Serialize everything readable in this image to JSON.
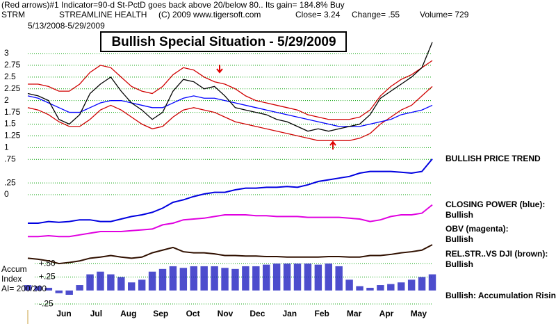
{
  "chart_data": {
    "type": "line",
    "subtitle": "(Red arrows)#1 Indicator=90-d St-PctD goes back above 20/below 80.. Its gain= 184.8% Buy",
    "symbol": "STRM",
    "company": "STREAMLINE HEALTH",
    "copyright": "(C) 2009 www.tigersoft.com",
    "close": "Close= 3.24",
    "change": "Change= .55",
    "volume": "Volume= 729",
    "date_range": "5/13/2008-5/29/2009",
    "title": "Bullish Special Situation - 5/29/2009",
    "months": [
      "Jun",
      "Jul",
      "Aug",
      "Sep",
      "Oct",
      "Nov",
      "Dec",
      "Jan",
      "Feb",
      "Mar",
      "Apr",
      "May"
    ],
    "ylim": [
      0,
      3
    ],
    "yticks": [
      0,
      {
        "value": 0.25,
        "label": ".25"
      },
      {
        "value": 0.75,
        "label": ".75"
      },
      1,
      1.25,
      1.5,
      1.75,
      2,
      2.25,
      2.5,
      2.75,
      3
    ],
    "grid": true,
    "series": [
      {
        "color": "#d00000",
        "values": [
          2.35,
          2.35,
          2.3,
          2.2,
          2.2,
          2.35,
          2.6,
          2.75,
          2.7,
          2.5,
          2.3,
          2.2,
          2.15,
          2.3,
          2.55,
          2.7,
          2.65,
          2.5,
          2.4,
          2.35,
          2.25,
          2.1,
          2.0,
          1.95,
          1.9,
          1.85,
          1.8,
          1.7,
          1.65,
          1.6,
          1.6,
          1.6,
          1.65,
          1.8,
          2.1,
          2.3,
          2.45,
          2.55,
          2.7,
          2.85
        ]
      },
      {
        "color": "#d00000",
        "values": [
          1.85,
          1.8,
          1.7,
          1.55,
          1.45,
          1.45,
          1.6,
          1.8,
          1.9,
          1.8,
          1.65,
          1.5,
          1.4,
          1.45,
          1.65,
          1.8,
          1.85,
          1.8,
          1.75,
          1.65,
          1.55,
          1.5,
          1.45,
          1.4,
          1.35,
          1.3,
          1.25,
          1.2,
          1.15,
          1.15,
          1.15,
          1.15,
          1.2,
          1.3,
          1.5,
          1.65,
          1.8,
          1.9,
          2.1,
          2.3
        ]
      },
      {
        "color": "#0000ff",
        "values": [
          2.1,
          2.05,
          1.95,
          1.85,
          1.75,
          1.75,
          1.85,
          1.95,
          2.0,
          2.0,
          1.95,
          1.9,
          1.85,
          1.85,
          1.95,
          2.05,
          2.1,
          2.05,
          2.05,
          2.0,
          1.95,
          1.9,
          1.85,
          1.8,
          1.75,
          1.7,
          1.65,
          1.6,
          1.55,
          1.5,
          1.45,
          1.45,
          1.45,
          1.5,
          1.55,
          1.6,
          1.7,
          1.75,
          1.8,
          1.9
        ]
      },
      {
        "color": "#000000",
        "values": [
          2.15,
          2.1,
          2.0,
          1.6,
          1.5,
          1.7,
          2.15,
          2.35,
          2.5,
          2.2,
          1.95,
          1.8,
          1.6,
          1.75,
          2.2,
          2.45,
          2.4,
          2.25,
          2.3,
          2.1,
          1.85,
          1.8,
          1.75,
          1.7,
          1.6,
          1.55,
          1.45,
          1.35,
          1.4,
          1.35,
          1.4,
          1.45,
          1.5,
          1.7,
          2.05,
          2.2,
          2.35,
          2.5,
          2.7,
          3.24
        ]
      }
    ],
    "indicator_panel": {
      "ylim": [
        0,
        100
      ],
      "series": [
        {
          "color": "#0000e0",
          "values": [
            20,
            20,
            22,
            21,
            22,
            24,
            24,
            22,
            22,
            25,
            28,
            30,
            33,
            38,
            45,
            48,
            52,
            55,
            57,
            57,
            60,
            62,
            62,
            63,
            63,
            64,
            63,
            66,
            70,
            72,
            74,
            76,
            80,
            82,
            82,
            82,
            81,
            80,
            82,
            97
          ]
        },
        {
          "color": "#e000e0",
          "values": [
            4,
            4,
            5,
            4,
            4,
            6,
            8,
            10,
            10,
            10,
            11,
            12,
            13,
            18,
            20,
            24,
            25,
            26,
            28,
            30,
            30,
            30,
            29,
            29,
            28,
            28,
            28,
            27,
            27,
            27,
            27,
            26,
            25,
            22,
            24,
            28,
            30,
            30,
            32,
            42
          ]
        }
      ]
    },
    "accum_panel": {
      "ylim": [
        -0.3,
        0.85
      ],
      "yticks": [
        {
          "value": 0.5,
          "label": "+.50"
        },
        {
          "value": 0.25,
          "label": "+.25"
        },
        {
          "value": -0.25,
          "label": "-.25"
        }
      ],
      "labels": [
        "Accum",
        "Index",
        "AI= 200/200"
      ],
      "bars": {
        "color": "#2020c0",
        "values": [
          0.1,
          0.08,
          0.05,
          -0.05,
          -0.08,
          0.1,
          0.3,
          0.35,
          0.3,
          0.25,
          0.15,
          0.2,
          0.35,
          0.4,
          0.45,
          0.42,
          0.45,
          0.45,
          0.45,
          0.42,
          0.4,
          0.45,
          0.45,
          0.48,
          0.5,
          0.5,
          0.5,
          0.5,
          0.48,
          0.5,
          0.45,
          0.2,
          0.08,
          0.05,
          0.1,
          0.12,
          0.15,
          0.2,
          0.25,
          0.3
        ]
      },
      "line": {
        "color": "#301000",
        "values": [
          0.6,
          0.58,
          0.55,
          0.5,
          0.52,
          0.55,
          0.6,
          0.62,
          0.65,
          0.62,
          0.6,
          0.62,
          0.7,
          0.75,
          0.8,
          0.72,
          0.7,
          0.7,
          0.68,
          0.65,
          0.65,
          0.64,
          0.64,
          0.63,
          0.63,
          0.62,
          0.62,
          0.62,
          0.62,
          0.63,
          0.63,
          0.62,
          0.62,
          0.65,
          0.65,
          0.67,
          0.7,
          0.72,
          0.75,
          0.85
        ]
      }
    },
    "status_labels": [
      "BULLISH PRICE TREND",
      "CLOSING POWER (blue):",
      "Bullish",
      "OBV (magenta):",
      "Bullish",
      "REL.STR..VS DJI (brown):",
      "Bullish",
      "Bullish: Accumulation Rising"
    ]
  }
}
